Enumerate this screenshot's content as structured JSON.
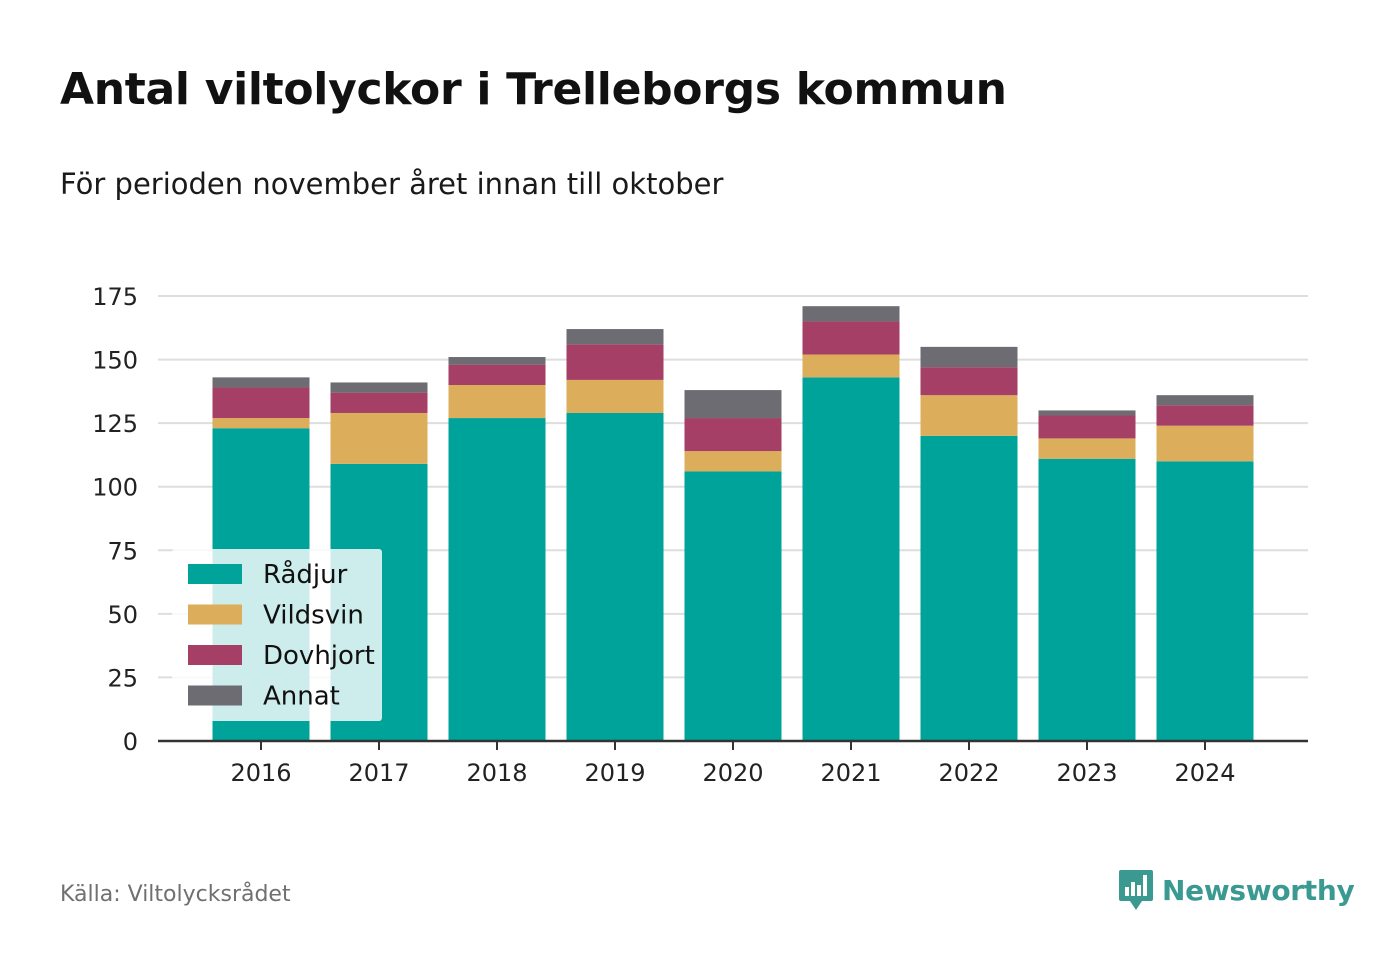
{
  "title": "Antal viltolyckor i Trelleborgs kommun",
  "subtitle": "För perioden november året innan till oktober",
  "source": "Källa: Viltolycksrådet",
  "brand": {
    "name": "Newsworthy",
    "icon": "newsworthy-logo-icon",
    "color": "#3a9a92"
  },
  "chart_data": {
    "type": "bar",
    "stacked": true,
    "categories": [
      "2016",
      "2017",
      "2018",
      "2019",
      "2020",
      "2021",
      "2022",
      "2023",
      "2024"
    ],
    "series": [
      {
        "name": "Rådjur",
        "color": "#00a39a",
        "values": [
          123,
          109,
          127,
          129,
          106,
          143,
          120,
          111,
          110
        ]
      },
      {
        "name": "Vildsvin",
        "color": "#dcad5a",
        "values": [
          4,
          20,
          13,
          13,
          8,
          9,
          16,
          8,
          14
        ]
      },
      {
        "name": "Dovhjort",
        "color": "#a53f66",
        "values": [
          12,
          8,
          8,
          14,
          13,
          13,
          11,
          9,
          8
        ]
      },
      {
        "name": "Annat",
        "color": "#6d6c72",
        "values": [
          4,
          4,
          3,
          6,
          11,
          6,
          8,
          2,
          4
        ]
      }
    ],
    "yticks": [
      0,
      25,
      50,
      75,
      100,
      125,
      150,
      175
    ],
    "ylim": [
      0,
      175
    ],
    "grid": true,
    "legend": "bottom-left"
  }
}
